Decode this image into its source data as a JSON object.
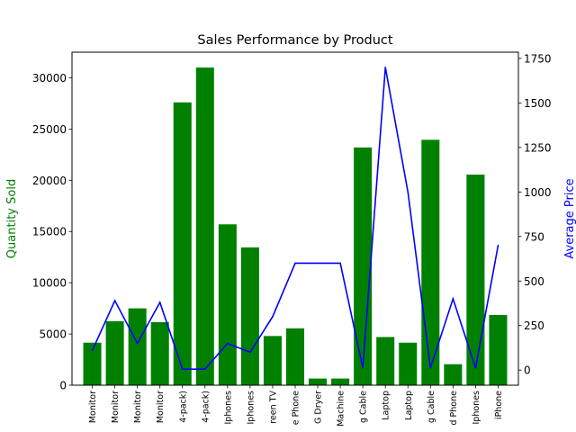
{
  "chart_data": {
    "type": "bar",
    "title": "Sales Performance by Product",
    "xlabel": "",
    "ylabel": "Quantity Sold",
    "y2label": "Average Price",
    "ylim": [
      0,
      32500
    ],
    "y2lim": [
      -85,
      1785
    ],
    "yticks": [
      0,
      5000,
      10000,
      15000,
      20000,
      25000,
      30000
    ],
    "y2ticks": [
      0,
      250,
      500,
      750,
      1000,
      1250,
      1500,
      1750
    ],
    "categories": [
      "Monitor",
      "Monitor",
      "Monitor",
      "Monitor",
      "4-pack)",
      "4-pack)",
      "Iphones",
      "Iphones",
      "reen TV",
      "e Phone",
      "G Dryer",
      "Machine",
      "g Cable",
      "Laptop",
      "Laptop",
      "g Cable",
      "d Phone",
      "Iphones",
      "iPhone"
    ],
    "series": [
      {
        "type": "bar",
        "axis": "left",
        "color": "#008000",
        "values": [
          4150,
          6250,
          7500,
          6150,
          27600,
          31000,
          15700,
          13450,
          4800,
          5550,
          650,
          650,
          23200,
          4700,
          4150,
          23950,
          2050,
          20550,
          6850
        ]
      },
      {
        "type": "line",
        "axis": "right",
        "color": "#0000ff",
        "values": [
          110,
          390,
          150,
          380,
          5,
          5,
          150,
          100,
          300,
          600,
          600,
          600,
          12,
          1700,
          1000,
          12,
          400,
          12,
          700
        ]
      }
    ],
    "grid": false,
    "legend": "none"
  },
  "colors": {
    "bar": "#008000",
    "line": "#0000ff",
    "axis": "#000000",
    "ylabel_left": "#008000",
    "ylabel_right": "#0000ff"
  }
}
